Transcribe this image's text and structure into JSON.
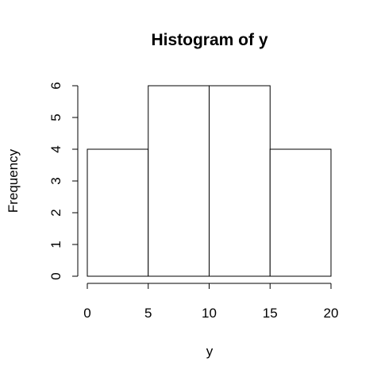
{
  "chart_data": {
    "type": "bar",
    "title": "Histogram of y",
    "xlabel": "y",
    "ylabel": "Frequency",
    "bins": [
      {
        "from": 0,
        "to": 5,
        "count": 4
      },
      {
        "from": 5,
        "to": 10,
        "count": 6
      },
      {
        "from": 10,
        "to": 15,
        "count": 6
      },
      {
        "from": 15,
        "to": 20,
        "count": 4
      }
    ],
    "xlim": [
      0,
      20
    ],
    "ylim": [
      0,
      6
    ],
    "xticks": [
      0,
      5,
      10,
      15,
      20
    ],
    "yticks": [
      0,
      1,
      2,
      3,
      4,
      5,
      6
    ],
    "grid": false,
    "colors": {
      "bar_fill": "#ffffff",
      "bar_stroke": "#000000"
    }
  }
}
